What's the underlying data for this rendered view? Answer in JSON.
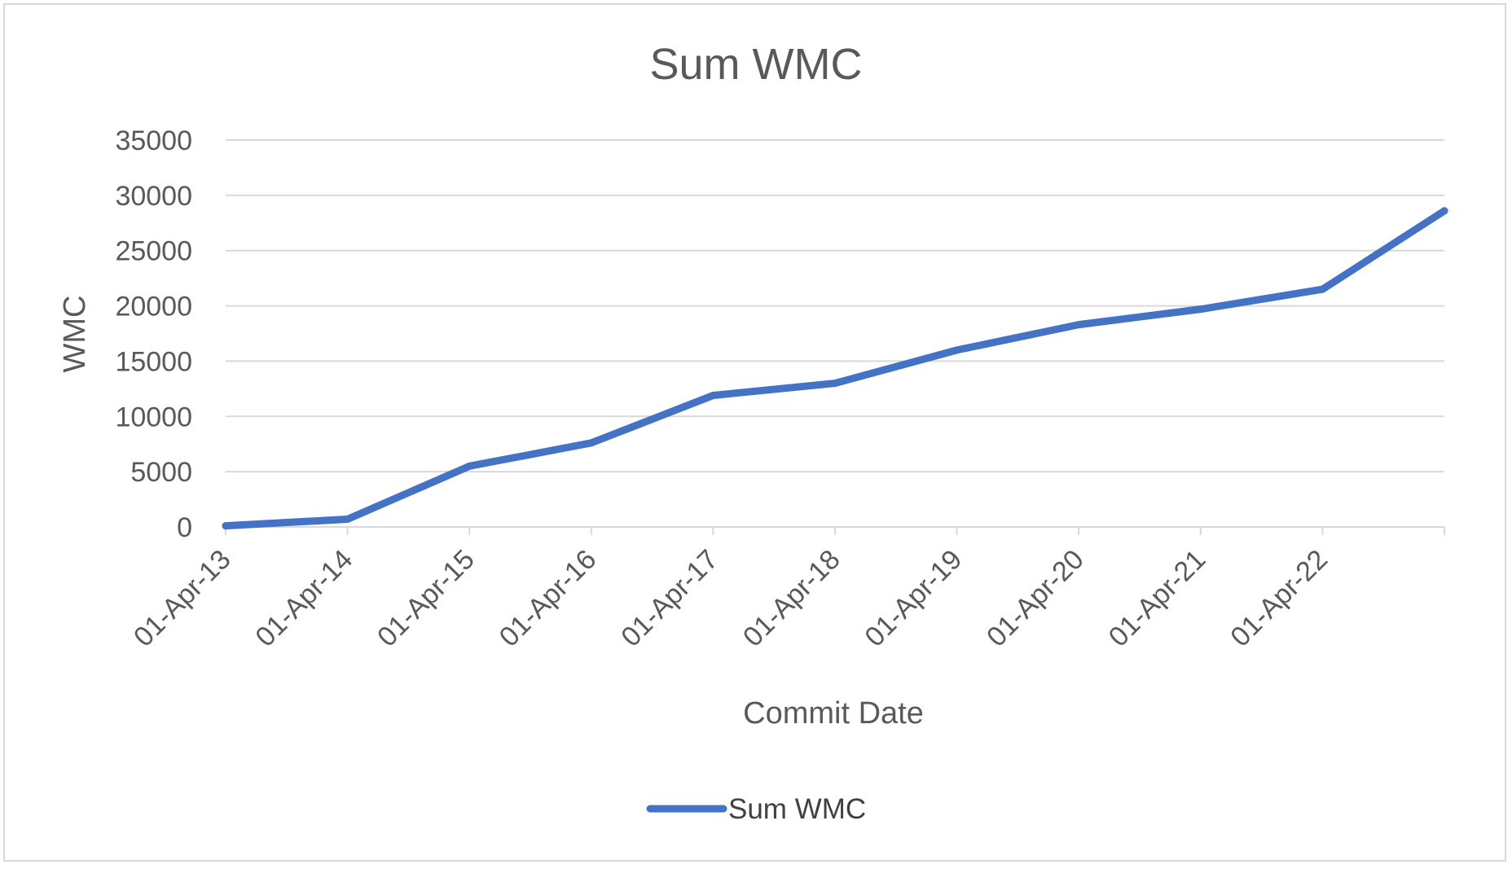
{
  "chart_data": {
    "type": "line",
    "title": "Sum WMC",
    "xlabel": "Commit Date",
    "ylabel": "WMC",
    "ylim": [
      0,
      35000
    ],
    "yticks": [
      0,
      5000,
      10000,
      15000,
      20000,
      25000,
      30000,
      35000
    ],
    "ytick_labels": [
      "0",
      "5000",
      "10000",
      "15000",
      "20000",
      "25000",
      "30000",
      "35000"
    ],
    "categories": [
      "01-Apr-13",
      "01-Apr-14",
      "01-Apr-15",
      "01-Apr-16",
      "01-Apr-17",
      "01-Apr-18",
      "01-Apr-19",
      "01-Apr-20",
      "01-Apr-21",
      "01-Apr-22",
      ""
    ],
    "series": [
      {
        "name": "Sum WMC",
        "color": "#4472c4",
        "values": [
          100,
          700,
          5500,
          7600,
          11900,
          13000,
          16000,
          18300,
          19700,
          21500,
          28600
        ]
      }
    ],
    "grid": true,
    "legend_position": "bottom"
  }
}
